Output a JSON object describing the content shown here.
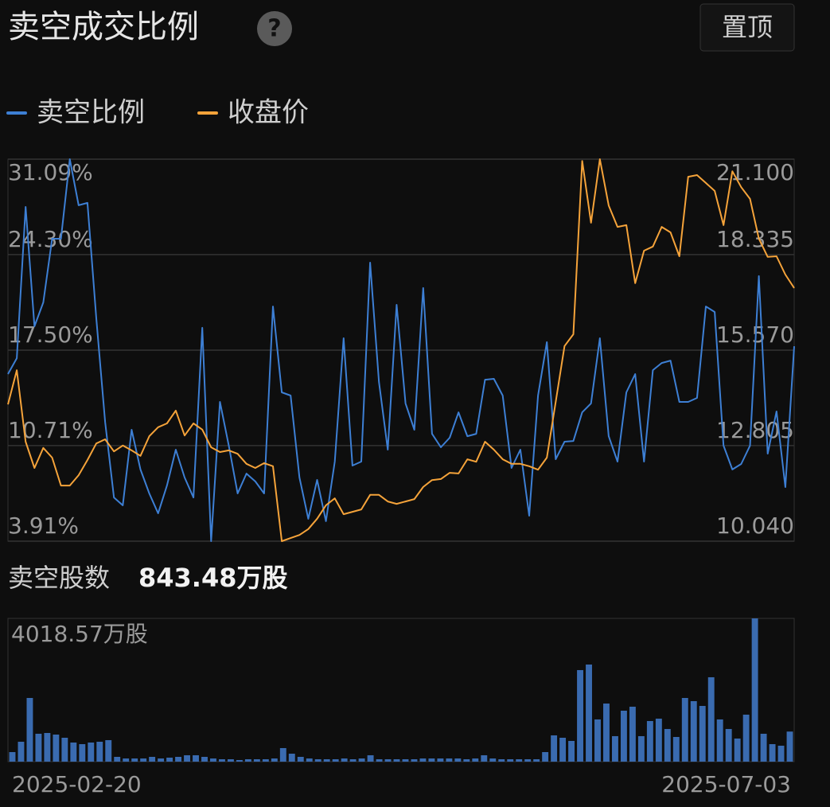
{
  "header": {
    "title": "卖空成交比例",
    "help": "?",
    "button": "置顶"
  },
  "chart_data": [
    {
      "type": "line",
      "series": [
        {
          "name": "卖空比例",
          "color": "#3d7fd4",
          "values": [
            15.8,
            16.93,
            27.69,
            19.2,
            20.9,
            25.43,
            25.43,
            31.09,
            27.81,
            27.98,
            19.77,
            12.4,
            7.02,
            6.46,
            11.84,
            9.01,
            7.31,
            5.89,
            7.87,
            10.42,
            8.44,
            7.02,
            19.09,
            3.91,
            13.82,
            10.71,
            7.31,
            8.72,
            8.16,
            7.31,
            20.61,
            14.5,
            14.27,
            8.44,
            5.5,
            8.27,
            5.33,
            9.57,
            18.35,
            9.29,
            9.57,
            23.73,
            15.24,
            10.42,
            20.73,
            13.71,
            11.84,
            21.92,
            11.55,
            10.59,
            11.27,
            13.08,
            11.38,
            11.55,
            15.4,
            15.46,
            14.27,
            9.12,
            10.42,
            5.72,
            14.27,
            18.07,
            9.74,
            10.99,
            11.04,
            13.08,
            13.71,
            18.35,
            11.38,
            9.57,
            14.5,
            15.8,
            9.57,
            16.08,
            16.59,
            16.76,
            13.82,
            13.82,
            14.1,
            20.61,
            20.22,
            10.71,
            9.01,
            9.4,
            10.71,
            22.77,
            10.14,
            13.14,
            7.76,
            17.78
          ]
        },
        {
          "name": "收盘价",
          "color": "#f5a33a",
          "axis": "y2",
          "values": [
            14.0,
            14.99,
            12.92,
            12.16,
            12.74,
            12.46,
            11.65,
            11.65,
            11.95,
            12.39,
            12.87,
            12.99,
            12.64,
            12.81,
            12.67,
            12.51,
            13.08,
            13.34,
            13.45,
            13.82,
            13.1,
            13.45,
            13.27,
            12.76,
            12.62,
            12.67,
            12.57,
            12.28,
            12.16,
            12.3,
            12.21,
            10.04,
            10.13,
            10.22,
            10.39,
            10.69,
            11.08,
            11.28,
            10.82,
            10.89,
            10.96,
            11.38,
            11.38,
            11.19,
            11.12,
            11.19,
            11.26,
            11.61,
            11.81,
            11.84,
            12.02,
            12.0,
            12.41,
            12.34,
            12.92,
            12.69,
            12.41,
            12.28,
            12.28,
            12.21,
            12.11,
            12.46,
            14.07,
            15.69,
            16.03,
            21.05,
            19.26,
            21.1,
            19.76,
            19.14,
            19.19,
            17.51,
            18.45,
            18.57,
            19.14,
            18.98,
            18.29,
            20.59,
            20.64,
            20.41,
            20.18,
            19.19,
            20.75,
            20.29,
            19.95,
            18.8,
            18.27,
            18.29,
            17.76,
            17.37
          ]
        }
      ],
      "ylim": [
        3.91,
        31.09
      ],
      "yticks": [
        {
          "value": 3.91,
          "label": "3.91%"
        },
        {
          "value": 10.71,
          "label": "10.71%"
        },
        {
          "value": 17.5,
          "label": "17.50%"
        },
        {
          "value": 24.3,
          "label": "24.30%"
        },
        {
          "value": 31.09,
          "label": "31.09%"
        }
      ],
      "y2lim": [
        10.04,
        21.1
      ],
      "y2ticks": [
        {
          "value": 10.04,
          "label": "10.040"
        },
        12.805,
        {
          "value": 15.57,
          "label": "15.570"
        },
        18.335,
        {
          "value": 21.1,
          "label": "21.100"
        }
      ],
      "grid": true
    },
    {
      "type": "bar",
      "title": "卖空股数",
      "subtitle": "843.48万股",
      "color": "#3a6bb0",
      "categories": [
        "2025-02-20",
        null,
        null,
        null,
        null,
        null,
        null,
        null,
        null,
        null,
        null,
        null,
        null,
        null,
        null,
        null,
        null,
        null,
        null,
        null,
        null,
        null,
        null,
        null,
        null,
        null,
        null,
        null,
        null,
        null,
        null,
        null,
        null,
        null,
        null,
        null,
        null,
        null,
        null,
        null,
        null,
        null,
        null,
        null,
        null,
        null,
        null,
        null,
        null,
        null,
        null,
        null,
        null,
        null,
        null,
        null,
        null,
        null,
        null,
        null,
        null,
        null,
        null,
        null,
        null,
        null,
        null,
        null,
        null,
        null,
        null,
        null,
        null,
        null,
        null,
        null,
        null,
        null,
        null,
        null,
        null,
        null,
        null,
        null,
        null,
        null,
        null,
        null,
        null,
        "2025-07-03"
      ],
      "values": [
        268,
        558,
        1786,
        782,
        804,
        759,
        670,
        536,
        491,
        536,
        558,
        603,
        134,
        89,
        89,
        89,
        134,
        89,
        112,
        134,
        179,
        179,
        134,
        89,
        67,
        67,
        45,
        67,
        67,
        67,
        89,
        380,
        223,
        134,
        89,
        67,
        67,
        67,
        89,
        67,
        89,
        179,
        67,
        67,
        67,
        67,
        67,
        89,
        89,
        89,
        89,
        89,
        67,
        89,
        179,
        89,
        67,
        67,
        67,
        67,
        67,
        268,
        737,
        670,
        581,
        2568,
        2724,
        1184,
        1630,
        715,
        1429,
        1541,
        715,
        1139,
        1206,
        916,
        692,
        1786,
        1697,
        1563,
        2367,
        1184,
        916,
        648,
        1318,
        4018.57,
        782,
        491,
        447,
        843.48
      ],
      "ylim": [
        0,
        4018.57
      ],
      "yticks": [
        {
          "value": 4018.57,
          "label": "4018.57万股"
        }
      ]
    }
  ]
}
